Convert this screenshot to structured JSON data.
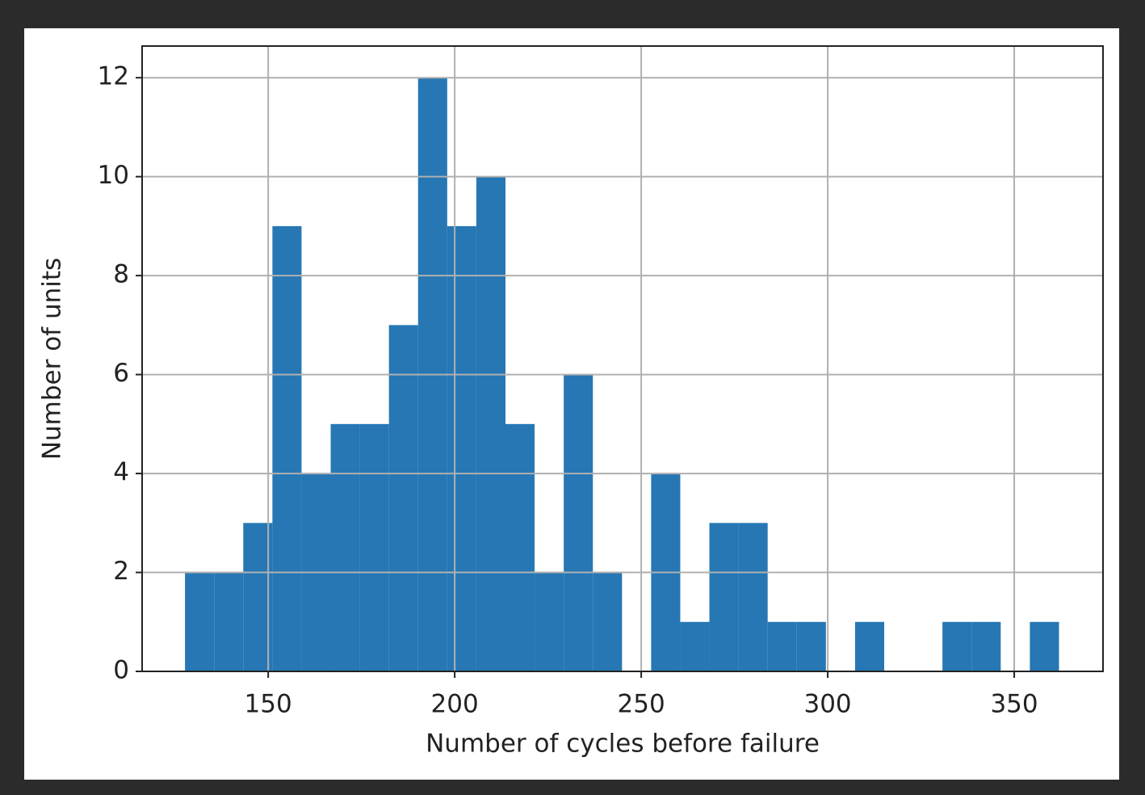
{
  "chart_data": {
    "type": "histogram",
    "x_label": "Number of cycles before failure",
    "y_label": "Number of units",
    "bins": [
      127.7,
      135.51,
      143.32,
      151.13,
      158.94,
      166.75,
      174.56,
      182.37,
      190.18,
      197.99,
      205.8,
      213.61,
      221.42,
      229.23,
      237.04,
      244.85,
      252.66,
      260.47,
      268.28,
      276.09,
      283.9,
      291.71,
      299.52,
      307.33,
      315.14,
      322.95,
      330.76,
      338.57,
      346.38,
      354.19,
      362.0
    ],
    "values": [
      2,
      2,
      3,
      9,
      4,
      5,
      5,
      7,
      12,
      9,
      10,
      5,
      2,
      6,
      2,
      0,
      4,
      1,
      3,
      3,
      1,
      1,
      0,
      1,
      0,
      0,
      1,
      1,
      0,
      1
    ],
    "color": "#2677b4",
    "xlim": [
      116.2,
      373.8
    ],
    "xticks": [
      150,
      200,
      250,
      300,
      350
    ],
    "ylim": [
      0,
      12.64
    ],
    "yticks": [
      0,
      2,
      4,
      6,
      8,
      10,
      12
    ],
    "grid": true
  }
}
